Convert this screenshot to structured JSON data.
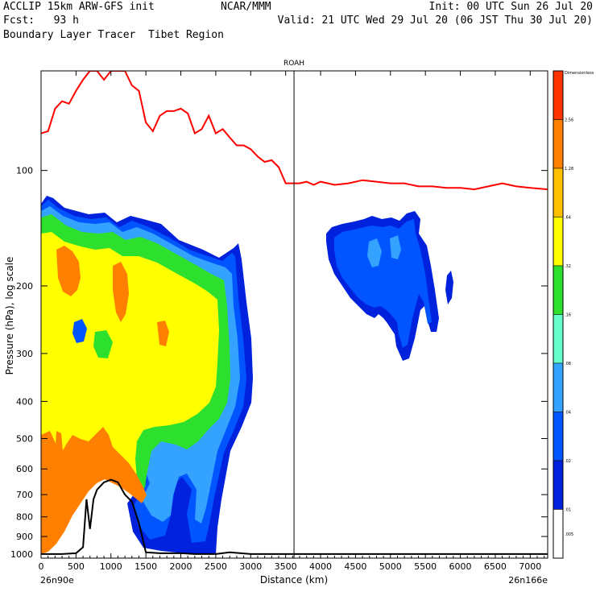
{
  "header": {
    "line1_left": "ACCLIP 15km ARW-GFS init",
    "line1_center": "NCAR/MMM",
    "line1_right": "Init: 00 UTC Sun 26 Jul 20",
    "line2_left": "Fcst:   93 h",
    "line2_right": "Valid: 21 UTC Wed 29 Jul 20 (06 JST Thu 30 Jul 20)",
    "line3_left": "Boundary Layer Tracer  Tibet Region"
  },
  "chart_data": {
    "type": "cross-section contour",
    "title": "ROAH",
    "xlabel": "Distance (km)",
    "ylabel": "Pressure (hPa), log scale",
    "x_ticks": [
      0,
      500,
      1000,
      1500,
      2000,
      2500,
      3000,
      3500,
      4000,
      4500,
      5000,
      5500,
      6000,
      6500,
      7000
    ],
    "x_tick_labels": [
      "0",
      "500",
      "1000",
      "1500",
      "2000",
      "2500",
      "3000",
      "3500",
      "4000",
      "4500",
      "5000",
      "5500",
      "6000",
      "6500",
      "7000"
    ],
    "x_range": [
      0,
      7250
    ],
    "y_ticks": [
      100,
      200,
      300,
      400,
      500,
      600,
      700,
      800,
      900,
      1000
    ],
    "y_tick_labels": [
      "100",
      "200",
      "300",
      "400",
      "500",
      "600",
      "700",
      "800",
      "900",
      "1000"
    ],
    "y_range": [
      55,
      1025
    ],
    "y_scale": "log",
    "left_endpoint_label": "26n90e",
    "right_endpoint_label": "26n166e",
    "vertical_marker_km": 3620,
    "colorbar": {
      "levels": [
        "Dimensionless",
        "2.56",
        "1.28",
        ".64",
        ".32",
        ".16",
        ".08",
        ".04",
        ".02",
        ".01",
        ".005"
      ],
      "colors": [
        "#ff3300",
        "#ff8000",
        "#ffc000",
        "#ffff00",
        "#2ee02e",
        "#66ffcc",
        "#33a3ff",
        "#0055ff",
        "#0022dd",
        "#ffffff"
      ]
    },
    "fill_colors": {
      "deep_blue": "#0022dd",
      "blue": "#0055ff",
      "sky": "#33a3ff",
      "cyan": "#66ffcc",
      "green": "#2ee02e",
      "yellow": "#ffff00",
      "orange": "#ff8000",
      "tropopause_line": "#ff0000",
      "terrain_line": "#000000"
    },
    "tropopause_line": {
      "x_km": [
        0,
        100,
        200,
        300,
        400,
        500,
        600,
        700,
        800,
        900,
        1000,
        1100,
        1200,
        1300,
        1400,
        1500,
        1600,
        1700,
        1800,
        1900,
        2000,
        2100,
        2200,
        2300,
        2400,
        2500,
        2600,
        2700,
        2800,
        2900,
        3000,
        3100,
        3200,
        3300,
        3400,
        3500,
        3600,
        3700,
        3800,
        3900,
        4000,
        4200,
        4400,
        4600,
        4800,
        5000,
        5200,
        5400,
        5600,
        5800,
        6000,
        6200,
        6400,
        6600,
        6800,
        7000,
        7250
      ],
      "p_hpa": [
        80,
        79,
        69,
        66,
        67,
        62,
        58,
        55,
        55,
        58,
        55,
        55,
        55,
        60,
        62,
        75,
        79,
        72,
        70,
        70,
        69,
        71,
        80,
        78,
        72,
        80,
        78,
        82,
        86,
        86,
        88,
        92,
        95,
        94,
        98,
        108,
        108,
        108,
        107,
        109,
        107,
        109,
        108,
        106,
        107,
        108,
        108,
        110,
        110,
        111,
        111,
        112,
        110,
        108,
        110,
        111,
        112
      ]
    },
    "terrain_line": {
      "x_km": [
        0,
        300,
        500,
        600,
        650,
        700,
        750,
        800,
        900,
        1000,
        1100,
        1200,
        1300,
        1400,
        1500,
        1700,
        2000,
        2200,
        2400,
        2500,
        2700,
        3000,
        3500,
        4000,
        5000,
        6000,
        7250
      ],
      "p_hpa": [
        1000,
        1000,
        995,
        960,
        720,
        860,
        720,
        680,
        650,
        640,
        650,
        700,
        730,
        830,
        990,
        995,
        995,
        1000,
        1000,
        1000,
        990,
        1000,
        1000,
        1000,
        1000,
        1000,
        1000
      ]
    }
  }
}
